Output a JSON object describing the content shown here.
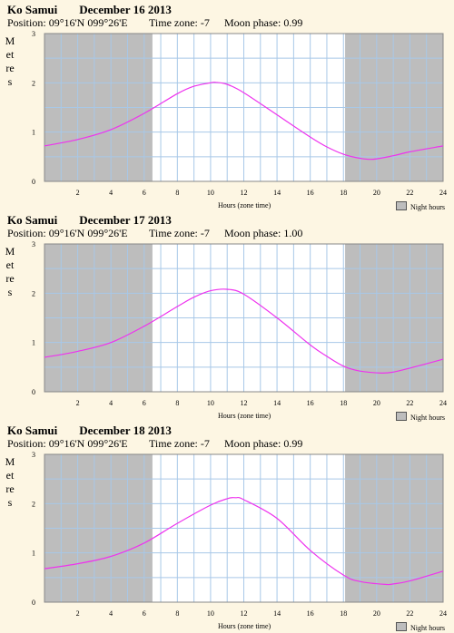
{
  "panels": [
    {
      "place": "Ko Samui",
      "date": "December 16 2013",
      "position_label": "Position:",
      "position": "09°16'N 099°26'E",
      "timezone_label": "Time zone:",
      "timezone": "-7",
      "moon_label": "Moon phase:",
      "moon": "0.99",
      "ylabel": "Metres",
      "xlabel": "Hours (zone time)",
      "legend": "Night hours"
    },
    {
      "place": "Ko Samui",
      "date": "December 17 2013",
      "position_label": "Position:",
      "position": "09°16'N 099°26'E",
      "timezone_label": "Time zone:",
      "timezone": "-7",
      "moon_label": "Moon phase:",
      "moon": "1.00",
      "ylabel": "Metres",
      "xlabel": "Hours (zone time)",
      "legend": "Night hours"
    },
    {
      "place": "Ko Samui",
      "date": "December 18 2013",
      "position_label": "Position:",
      "position": "09°16'N 099°26'E",
      "timezone_label": "Time zone:",
      "timezone": "-7",
      "moon_label": "Moon phase:",
      "moon": "0.99",
      "ylabel": "Metres",
      "xlabel": "Hours (zone time)",
      "legend": "Night hours"
    }
  ],
  "colors": {
    "background": "#fdf6e3",
    "night": "#bdbdbd",
    "grid": "#a8c8e8",
    "curve": "#ee33ee"
  },
  "chart_data": [
    {
      "type": "line",
      "xlim": [
        0,
        24
      ],
      "ylim": [
        0,
        3
      ],
      "xticks": [
        2,
        4,
        6,
        8,
        10,
        12,
        14,
        16,
        18,
        20,
        22,
        24
      ],
      "yticks": [
        0,
        1,
        2,
        3
      ],
      "night_hours": [
        [
          0,
          6.5
        ],
        [
          18.1,
          24
        ]
      ],
      "series": [
        {
          "x": [
            0,
            2,
            4,
            6,
            8,
            9,
            10,
            10.3,
            11,
            12,
            14,
            16,
            17,
            18,
            19,
            19.8,
            21,
            22,
            24
          ],
          "y": [
            0.72,
            0.85,
            1.05,
            1.38,
            1.78,
            1.93,
            2.0,
            2.01,
            1.97,
            1.8,
            1.35,
            0.9,
            0.7,
            0.55,
            0.47,
            0.45,
            0.52,
            0.6,
            0.72
          ]
        }
      ]
    },
    {
      "type": "line",
      "xlim": [
        0,
        24
      ],
      "ylim": [
        0,
        3
      ],
      "xticks": [
        2,
        4,
        6,
        8,
        10,
        12,
        14,
        16,
        18,
        20,
        22,
        24
      ],
      "yticks": [
        0,
        1,
        2,
        3
      ],
      "night_hours": [
        [
          0,
          6.5
        ],
        [
          18.1,
          24
        ]
      ],
      "series": [
        {
          "x": [
            0,
            2,
            4,
            6,
            8,
            9,
            10,
            11,
            12,
            14,
            16,
            17,
            18,
            19,
            20.3,
            21,
            22,
            24
          ],
          "y": [
            0.7,
            0.82,
            1.0,
            1.33,
            1.73,
            1.92,
            2.05,
            2.08,
            1.98,
            1.5,
            0.95,
            0.72,
            0.52,
            0.42,
            0.38,
            0.4,
            0.48,
            0.66
          ]
        }
      ]
    },
    {
      "type": "line",
      "xlim": [
        0,
        24
      ],
      "ylim": [
        0,
        3
      ],
      "xticks": [
        2,
        4,
        6,
        8,
        10,
        12,
        14,
        16,
        18,
        20,
        22,
        24
      ],
      "yticks": [
        0,
        1,
        2,
        3
      ],
      "night_hours": [
        [
          0,
          6.5
        ],
        [
          18.1,
          24
        ]
      ],
      "series": [
        {
          "x": [
            0,
            2,
            4,
            6,
            8,
            10,
            11,
            11.5,
            12,
            14,
            16,
            18,
            19,
            20.5,
            21,
            22,
            24
          ],
          "y": [
            0.68,
            0.78,
            0.93,
            1.2,
            1.6,
            1.97,
            2.1,
            2.12,
            2.08,
            1.7,
            1.05,
            0.55,
            0.42,
            0.36,
            0.37,
            0.43,
            0.63
          ]
        }
      ]
    }
  ]
}
